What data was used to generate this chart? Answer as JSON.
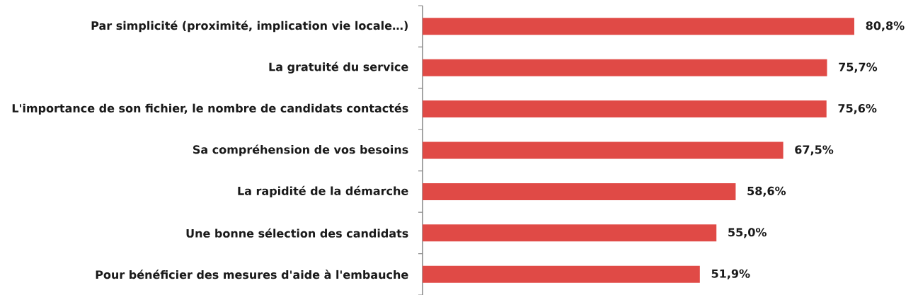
{
  "chart_data": {
    "type": "bar",
    "orientation": "horizontal",
    "categories": [
      "Par simplicité (proximité, implication vie locale…)",
      "La gratuité du service",
      "L'importance de son fichier, le nombre de candidats contactés",
      "Sa compréhension de vos besoins",
      "La rapidité de la démarche",
      "Une bonne sélection des candidats",
      "Pour bénéficier des mesures d'aide à l'embauche"
    ],
    "values": [
      80.8,
      75.7,
      75.6,
      67.5,
      58.6,
      55.0,
      51.9
    ],
    "value_labels": [
      "80,8%",
      "75,7%",
      "75,6%",
      "67,5%",
      "58,6%",
      "55,0%",
      "51,9%"
    ],
    "color": "#e04a46"
  }
}
